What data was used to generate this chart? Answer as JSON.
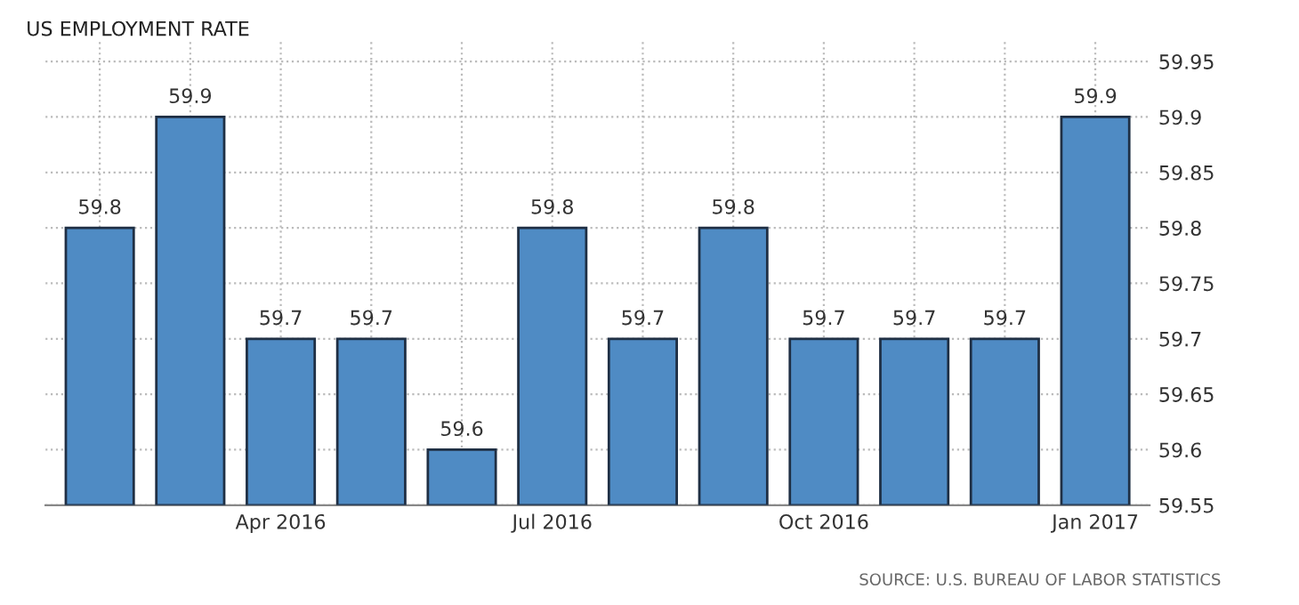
{
  "chart_data": {
    "type": "bar",
    "title": "US EMPLOYMENT RATE",
    "categories": [
      null,
      null,
      "Apr 2016",
      null,
      null,
      "Jul 2016",
      null,
      null,
      "Oct 2016",
      null,
      null,
      "Jan 2017"
    ],
    "values": [
      59.8,
      59.9,
      59.7,
      59.7,
      59.6,
      59.8,
      59.7,
      59.8,
      59.7,
      59.7,
      59.7,
      59.9
    ],
    "color": "#4f8bc4",
    "ylim": [
      59.55,
      59.97
    ],
    "yticks": [
      59.55,
      59.6,
      59.65,
      59.7,
      59.75,
      59.8,
      59.85,
      59.9,
      59.95
    ],
    "grid": true,
    "data_labels": true,
    "annotations": [
      "SOURCE: U.S. BUREAU OF LABOR STATISTICS"
    ]
  }
}
